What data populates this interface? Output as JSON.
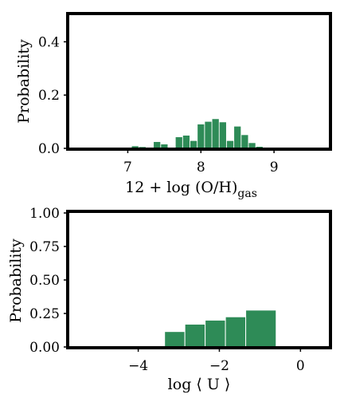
{
  "chart_data": [
    {
      "type": "bar",
      "xlabel": "12 + log (O/H)",
      "xlabel_sub": "gas",
      "ylabel": "Probability",
      "xlim": [
        6.2,
        9.75
      ],
      "ylim": [
        0,
        0.5
      ],
      "xticks": [
        7,
        8,
        9
      ],
      "yticks": [
        0.0,
        0.2,
        0.4
      ],
      "ytick_labels": [
        "0.0",
        "0.2",
        "0.4"
      ],
      "bar_color": "#2e8b57",
      "bin_width": 0.1,
      "bars": [
        {
          "x": 6.9,
          "y": 0.001
        },
        {
          "x": 7.0,
          "y": 0.002
        },
        {
          "x": 7.1,
          "y": 0.008
        },
        {
          "x": 7.2,
          "y": 0.005
        },
        {
          "x": 7.3,
          "y": 0.003
        },
        {
          "x": 7.4,
          "y": 0.024
        },
        {
          "x": 7.5,
          "y": 0.015
        },
        {
          "x": 7.6,
          "y": 0.002
        },
        {
          "x": 7.7,
          "y": 0.042
        },
        {
          "x": 7.8,
          "y": 0.048
        },
        {
          "x": 7.9,
          "y": 0.028
        },
        {
          "x": 8.0,
          "y": 0.09
        },
        {
          "x": 8.1,
          "y": 0.1
        },
        {
          "x": 8.2,
          "y": 0.11
        },
        {
          "x": 8.3,
          "y": 0.098
        },
        {
          "x": 8.4,
          "y": 0.028
        },
        {
          "x": 8.5,
          "y": 0.082
        },
        {
          "x": 8.6,
          "y": 0.05
        },
        {
          "x": 8.7,
          "y": 0.02
        },
        {
          "x": 8.8,
          "y": 0.006
        },
        {
          "x": 8.9,
          "y": 0.002
        },
        {
          "x": 9.0,
          "y": 0.001
        }
      ]
    },
    {
      "type": "bar",
      "xlabel": "log ⟨ U ⟩",
      "ylabel": "Probability",
      "xlim": [
        -5.7,
        0.7
      ],
      "ylim": [
        0,
        1.0
      ],
      "xticks": [
        -4,
        -2,
        0
      ],
      "xtick_labels": [
        "−4",
        "−2",
        "0"
      ],
      "yticks": [
        0.0,
        0.25,
        0.5,
        0.75,
        1.0
      ],
      "ytick_labels": [
        "0.00",
        "0.25",
        "0.50",
        "0.75",
        "1.00"
      ],
      "bar_color": "#2e8b57",
      "bars": [
        {
          "x0": -3.35,
          "x1": -2.85,
          "y": 0.115
        },
        {
          "x0": -2.85,
          "x1": -2.35,
          "y": 0.17
        },
        {
          "x0": -2.35,
          "x1": -1.85,
          "y": 0.2
        },
        {
          "x0": -1.85,
          "x1": -1.35,
          "y": 0.225
        },
        {
          "x0": -1.35,
          "x1": -0.6,
          "y": 0.275
        }
      ]
    }
  ]
}
